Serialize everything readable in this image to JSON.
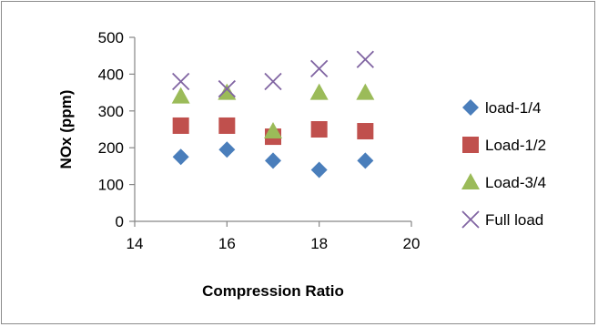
{
  "chart_data": {
    "type": "scatter",
    "title": "",
    "xlabel": "Compression Ratio",
    "ylabel": "NOx (ppm)",
    "xlim": [
      14,
      20
    ],
    "ylim": [
      0,
      500
    ],
    "xticks": [
      14,
      16,
      18,
      20
    ],
    "yticks": [
      0,
      100,
      200,
      300,
      400,
      500
    ],
    "grid": false,
    "legend_position": "right",
    "series": [
      {
        "name": "load-1/4",
        "marker": "diamond",
        "color": "#4a7ebb",
        "x": [
          15,
          16,
          17,
          18,
          19
        ],
        "y": [
          175,
          195,
          165,
          140,
          165
        ]
      },
      {
        "name": "Load-1/2",
        "marker": "square",
        "color": "#c0504d",
        "x": [
          15,
          16,
          17,
          18,
          19
        ],
        "y": [
          260,
          260,
          230,
          250,
          245
        ]
      },
      {
        "name": "Load-3/4",
        "marker": "triangle",
        "color": "#9bbb59",
        "x": [
          15,
          16,
          17,
          18,
          19
        ],
        "y": [
          340,
          350,
          245,
          350,
          350
        ]
      },
      {
        "name": "Full load",
        "marker": "x",
        "color": "#8064a2",
        "x": [
          15,
          16,
          17,
          18,
          19
        ],
        "y": [
          380,
          360,
          380,
          415,
          440
        ]
      }
    ]
  }
}
